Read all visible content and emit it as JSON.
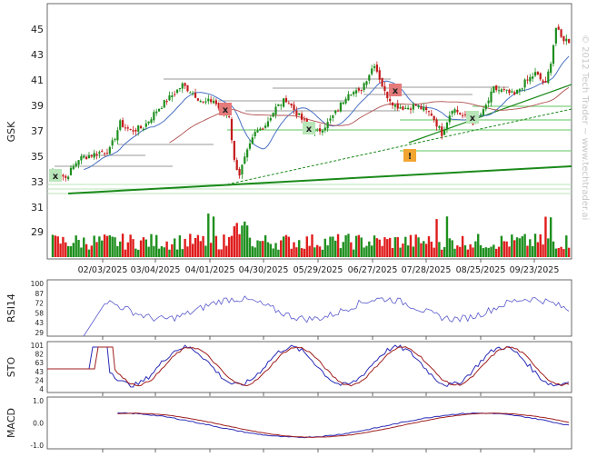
{
  "chart_data": [
    {
      "type": "candlestick",
      "ylabel": "GSK",
      "ylim": [
        30.0,
        47.0
      ],
      "yticks": [
        45,
        43,
        41,
        39,
        37,
        35,
        33
      ],
      "volume_ticks": [
        31,
        29
      ],
      "xticks": [
        "02/03/2025",
        "03/04/2025",
        "04/01/2025",
        "04/30/2025",
        "05/29/2025",
        "06/27/2025",
        "07/28/2025",
        "08/25/2025",
        "09/23/2025"
      ],
      "watermark": "© 2012 Tech Trader ~ www.techtrader.ai",
      "annotations": [
        {
          "label": "x",
          "color": "green",
          "near": [
            61.0,
            193.0
          ]
        },
        {
          "label": "x",
          "color": "red",
          "near": [
            248.0,
            120.0
          ]
        },
        {
          "label": "x",
          "color": "green",
          "near": [
            340.0,
            141.0
          ]
        },
        {
          "label": "x",
          "color": "red",
          "near": [
            435.0,
            99.0
          ]
        },
        {
          "label": "!",
          "color": "orange",
          "near": [
            451.0,
            171.0
          ]
        },
        {
          "label": "x",
          "color": "green",
          "near": [
            520.0,
            129.0
          ]
        }
      ]
    },
    {
      "type": "line",
      "ylabel": "RSI14",
      "yticks": [
        "100",
        "87",
        "72",
        "58",
        "43",
        "29"
      ]
    },
    {
      "type": "line",
      "ylabel": "STO",
      "yticks": [
        "101",
        "82",
        "63",
        "43",
        "24",
        "4"
      ]
    },
    {
      "type": "line",
      "ylabel": "MACD",
      "yticks": [
        "1.0",
        "0.0",
        "-1.0"
      ]
    }
  ]
}
